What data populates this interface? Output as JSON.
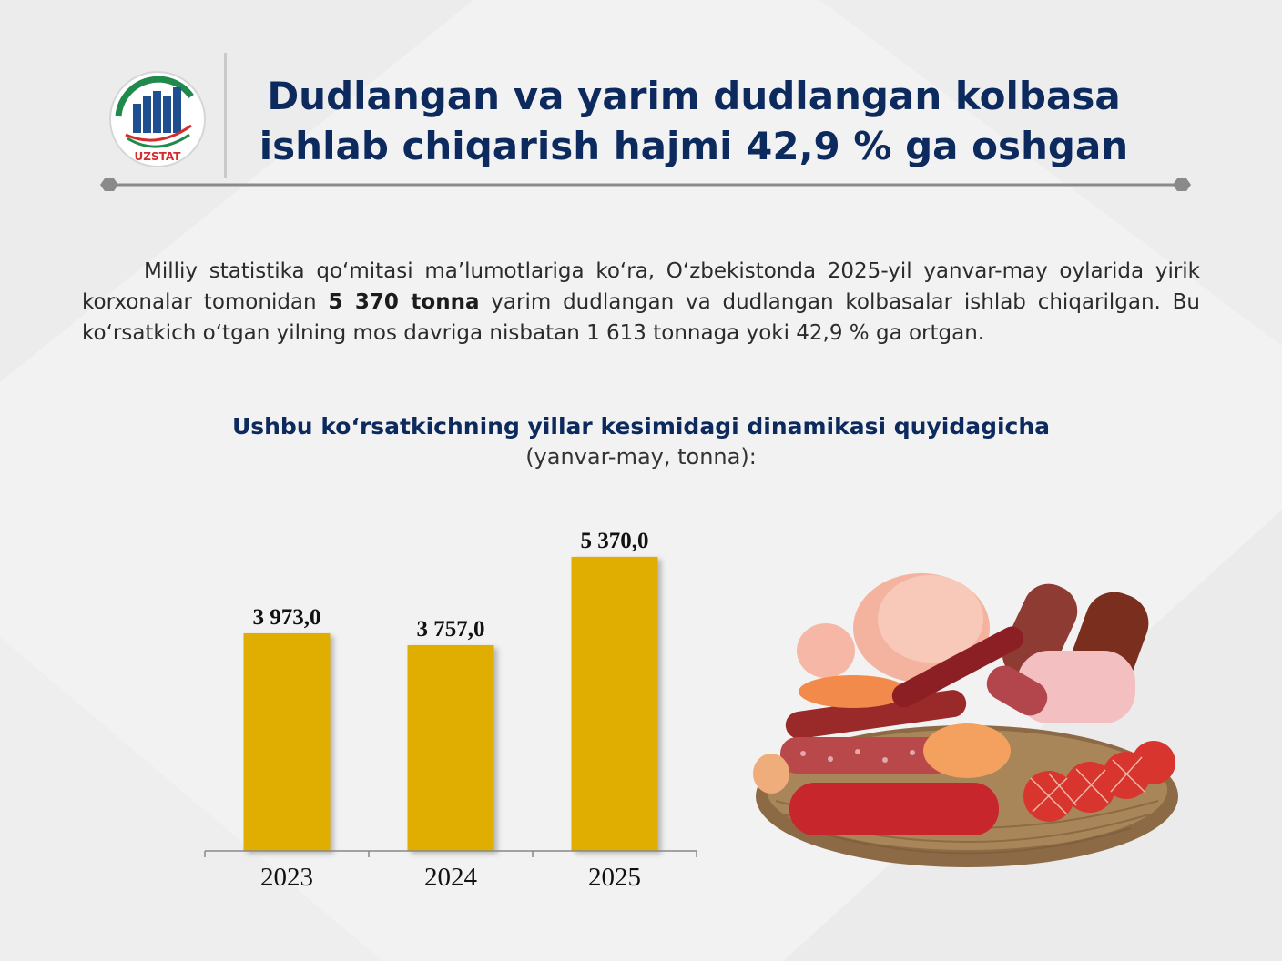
{
  "header": {
    "logo_text": "UZSTAT",
    "title_line1": "Dudlangan va yarim dudlangan kolbasa",
    "title_line2": "ishlab chiqarish hajmi 42,9 % ga oshgan"
  },
  "intro": {
    "part1": "Milliy statistika qo‘mitasi ma’lumotlariga ko‘ra, O‘zbekistonda 2025-yil yanvar-may oylarida yirik korxonalar tomonidan ",
    "highlight": "5 370 tonna",
    "part2": " yarim dudlangan va dudlangan kolbasalar ishlab chiqarilgan. Bu ko‘rsatkich o‘tgan yilning mos davriga nisbatan 1 613 tonnaga yoki 42,9 % ga ortgan."
  },
  "chart_heading": {
    "title": "Ushbu ko‘rsatkichning yillar kesimidagi dinamikasi quyidagicha",
    "subtitle": "(yanvar-may, tonna):"
  },
  "chart_data": {
    "type": "bar",
    "categories": [
      "2023",
      "2024",
      "2025"
    ],
    "values": [
      3973.0,
      3757.0,
      5370.0
    ],
    "value_labels": [
      "3 973,0",
      "3 757,0",
      "5 370,0"
    ],
    "ylim": [
      0,
      5900
    ],
    "bar_color": "#e0ae00",
    "grid": false,
    "legend": "none"
  },
  "colors": {
    "title": "#0c2a5e",
    "bar": "#e0ae00",
    "rule": "#8a8a8a"
  },
  "illustration": "smoked-sausages-basket-photo"
}
